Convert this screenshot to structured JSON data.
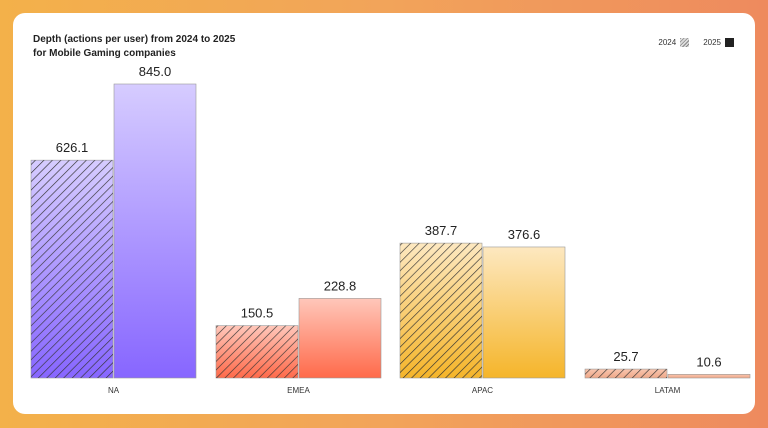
{
  "chart_data": {
    "type": "bar",
    "title": "Depth (actions per user) from 2024 to 2025",
    "subtitle": "for Mobile Gaming companies",
    "categories": [
      "NA",
      "EMEA",
      "APAC",
      "LATAM"
    ],
    "series": [
      {
        "name": "2024",
        "values": [
          626.1,
          150.5,
          387.7,
          25.7
        ]
      },
      {
        "name": "2025",
        "values": [
          845.0,
          228.8,
          376.6,
          10.6
        ]
      }
    ],
    "value_labels": [
      [
        "626.1",
        "150.5",
        "387.7",
        "25.7"
      ],
      [
        "845.0",
        "228.8",
        "376.6",
        "10.6"
      ]
    ],
    "xlabel": "",
    "ylabel": "",
    "ylim": [
      0,
      845
    ],
    "grid": false,
    "legend_position": "top-right",
    "colors": [
      [
        "#d6ccff",
        "#8766ff"
      ],
      [
        "#ffc7ba",
        "#ff6a4a"
      ],
      [
        "#fde8c0",
        "#f5b52a"
      ],
      [
        "#f8c6b0",
        "#f0a888"
      ]
    ]
  }
}
